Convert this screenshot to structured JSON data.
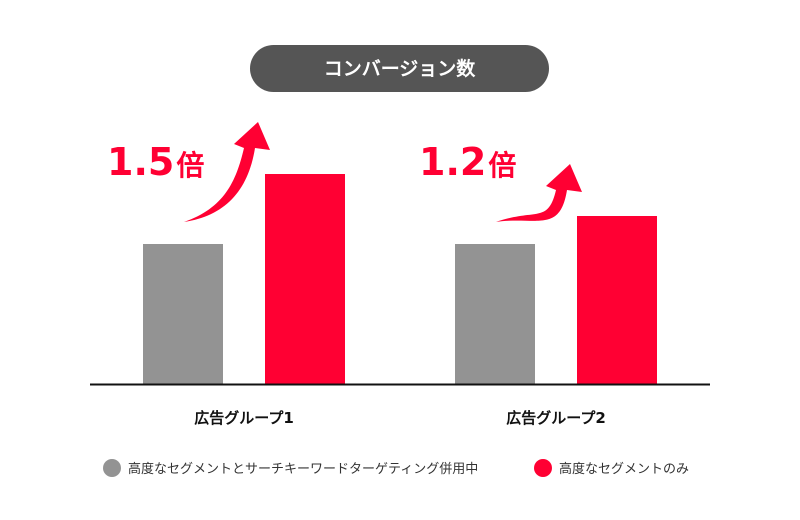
{
  "chart_data": {
    "type": "bar",
    "title": "コンバージョン数",
    "categories": [
      "広告グループ1",
      "広告グループ2"
    ],
    "series": [
      {
        "name": "高度なセグメントとサーチキーワードターゲティング併用中",
        "color": "#939393",
        "values": [
          1.0,
          1.0
        ]
      },
      {
        "name": "高度なセグメントのみ",
        "color": "#ff0033",
        "values": [
          1.5,
          1.2
        ]
      }
    ],
    "annotations": [
      {
        "number": "1.5",
        "unit": "倍"
      },
      {
        "number": "1.2",
        "unit": "倍"
      }
    ],
    "xlabel": "",
    "ylabel": "",
    "ylim": [
      0,
      1.75
    ],
    "grid": false,
    "legend_position": "bottom"
  }
}
